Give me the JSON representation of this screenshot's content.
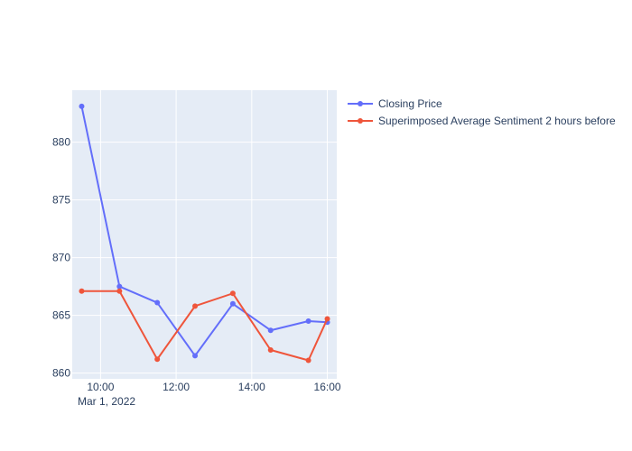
{
  "chart_data": {
    "type": "line",
    "x": [
      "09:30",
      "10:30",
      "11:30",
      "12:30",
      "13:30",
      "14:30",
      "15:30",
      "16:00"
    ],
    "x_date_label": "Mar 1, 2022",
    "x_ticks": [
      "10:00",
      "12:00",
      "14:00",
      "16:00"
    ],
    "y_ticks": [
      860,
      865,
      870,
      875,
      880
    ],
    "ylim": [
      859.5,
      884.5
    ],
    "xlim": [
      "09:15",
      "16:15"
    ],
    "grid": true,
    "legend_position": "top-right",
    "series": [
      {
        "name": "Closing Price",
        "color": "#636efa",
        "values": [
          883.1,
          867.5,
          866.1,
          861.5,
          866.0,
          863.7,
          864.5,
          864.4
        ]
      },
      {
        "name": "Superimposed Average Sentiment 2 hours before",
        "color": "#ef553b",
        "values": [
          867.1,
          867.1,
          861.2,
          865.8,
          866.9,
          862.0,
          861.1,
          864.7
        ]
      }
    ]
  }
}
